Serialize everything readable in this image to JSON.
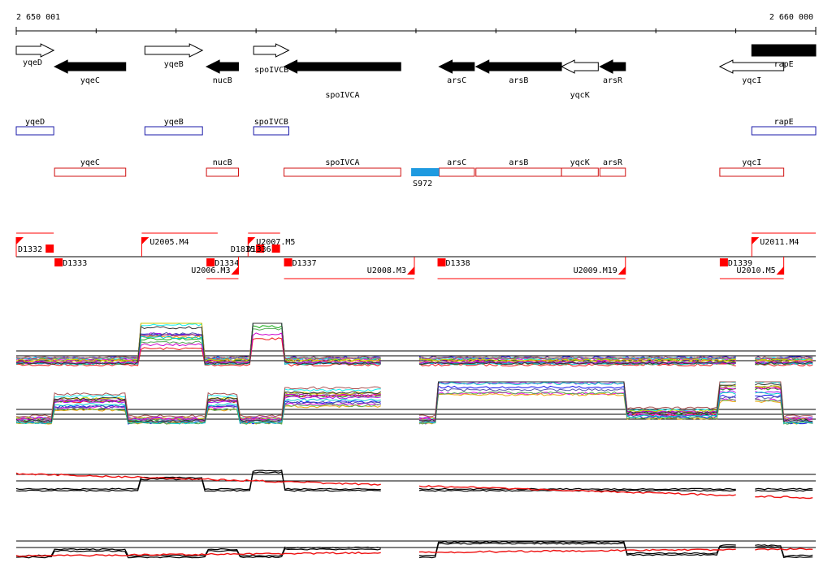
{
  "ruler": {
    "start_label": "2 650 001",
    "end_label": "2 660 000",
    "start": 2650001,
    "end": 2660000,
    "tick_step": 1000
  },
  "colors": {
    "gene_forward": "#ffffff",
    "gene_reverse": "#000000",
    "box_forward": "#1a1aa8",
    "box_reverse": "#d01010",
    "srna": "#1e9ae0",
    "marker": "#ff0000",
    "profile_red": "#ee1111",
    "profile_black": "#000000"
  },
  "genes": [
    {
      "name": "yqeD",
      "start": 2650001,
      "end": 2650470,
      "strand": "+",
      "row": 0,
      "label_pos": "below-left"
    },
    {
      "name": "yqeC",
      "start": 2650480,
      "end": 2651370,
      "strand": "-",
      "row": 1,
      "label_pos": "below"
    },
    {
      "name": "yqeB",
      "start": 2651610,
      "end": 2652330,
      "strand": "+",
      "row": 0,
      "label_pos": "below"
    },
    {
      "name": "nucB",
      "start": 2652380,
      "end": 2652780,
      "strand": "-",
      "row": 1,
      "label_pos": "below"
    },
    {
      "name": "spoIVCB",
      "start": 2652970,
      "end": 2653410,
      "strand": "+",
      "row": 0,
      "label_pos": "below"
    },
    {
      "name": "spoIVCA",
      "start": 2653350,
      "end": 2654810,
      "strand": "-",
      "row": 1,
      "label_pos": "below-far"
    },
    {
      "name": "arsC",
      "start": 2655290,
      "end": 2655730,
      "strand": "-",
      "row": 1,
      "label_pos": "below"
    },
    {
      "name": "arsB",
      "start": 2655750,
      "end": 2656820,
      "strand": "-",
      "row": 1,
      "label_pos": "below"
    },
    {
      "name": "yqcK",
      "start": 2656820,
      "end": 2657280,
      "strand": "-",
      "row": 1,
      "label_pos": "below-far",
      "forward_style": true
    },
    {
      "name": "arsR",
      "start": 2657300,
      "end": 2657620,
      "strand": "-",
      "row": 1,
      "label_pos": "below"
    },
    {
      "name": "yqcI",
      "start": 2658800,
      "end": 2659600,
      "strand": "-",
      "row": 1,
      "label_pos": "below",
      "forward_style": true
    },
    {
      "name": "rapE",
      "start": 2659200,
      "end": 2660000,
      "strand": "+",
      "row": 0,
      "label_pos": "below",
      "filled": true
    }
  ],
  "feature_boxes_forward": [
    {
      "name": "yqeD",
      "start": 2650001,
      "end": 2650470
    },
    {
      "name": "yqeB",
      "start": 2651610,
      "end": 2652330
    },
    {
      "name": "spoIVCB",
      "start": 2652970,
      "end": 2653410
    },
    {
      "name": "rapE",
      "start": 2659200,
      "end": 2660000
    }
  ],
  "feature_boxes_reverse": [
    {
      "name": "yqeC",
      "start": 2650480,
      "end": 2651370
    },
    {
      "name": "nucB",
      "start": 2652380,
      "end": 2652780
    },
    {
      "name": "spoIVCA",
      "start": 2653350,
      "end": 2654810
    },
    {
      "name": "arsC",
      "start": 2655290,
      "end": 2655730
    },
    {
      "name": "arsB",
      "start": 2655750,
      "end": 2656820
    },
    {
      "name": "yqcK",
      "start": 2656820,
      "end": 2657280
    },
    {
      "name": "arsR",
      "start": 2657300,
      "end": 2657620
    },
    {
      "name": "yqcI",
      "start": 2658800,
      "end": 2659600
    }
  ],
  "srna": {
    "name": "S972",
    "start": 2654940,
    "end": 2655290
  },
  "upper_segments": [
    {
      "name": "D1332",
      "start": 2650001,
      "end": 2650470,
      "flag": "left"
    },
    {
      "name": "U2005.M4",
      "start": 2651570,
      "end": 2652520,
      "flag": "left"
    },
    {
      "name": "U2007.M5",
      "start": 2652900,
      "end": 2653300,
      "flag": "left"
    },
    {
      "name": "D1835",
      "start": 2653000,
      "end": 2653100,
      "flag": "right"
    },
    {
      "name": "D1336",
      "start": 2653200,
      "end": 2653300,
      "flag": "right"
    },
    {
      "name": "U2011.M4",
      "start": 2659200,
      "end": 2660000,
      "flag": "left"
    }
  ],
  "lower_segments": [
    {
      "name": "D1333",
      "start": 2650480,
      "end": 2650600,
      "flag": "left"
    },
    {
      "name": "D1334",
      "start": 2652380,
      "end": 2652780,
      "flag": "left"
    },
    {
      "name": "U2006.M3",
      "start": 2652380,
      "end": 2652780,
      "flag": "right"
    },
    {
      "name": "D1337",
      "start": 2653350,
      "end": 2653500,
      "flag": "left"
    },
    {
      "name": "U2008.M3",
      "start": 2653350,
      "end": 2654980,
      "flag": "right"
    },
    {
      "name": "D1338",
      "start": 2655270,
      "end": 2657620,
      "flag": "left"
    },
    {
      "name": "U2009.M19",
      "start": 2655270,
      "end": 2657620,
      "flag": "right"
    },
    {
      "name": "D1339",
      "start": 2658800,
      "end": 2659600,
      "flag": "left"
    },
    {
      "name": "U2010.M5",
      "start": 2658800,
      "end": 2659600,
      "flag": "right"
    }
  ],
  "profile_tracks": [
    {
      "name": "forward-multi-profile",
      "kind": "multi",
      "gaps": [
        2654690,
        2654920,
        2659120
      ]
    },
    {
      "name": "reverse-multi-profile",
      "kind": "multi",
      "gaps": [
        2654690,
        2654920,
        2659120
      ]
    },
    {
      "name": "forward-summary-profile",
      "kind": "summary",
      "gaps": [
        2654690,
        2654920,
        2659120
      ]
    },
    {
      "name": "reverse-summary-profile",
      "kind": "summary",
      "gaps": [
        2654690,
        2654920,
        2659120
      ]
    }
  ]
}
